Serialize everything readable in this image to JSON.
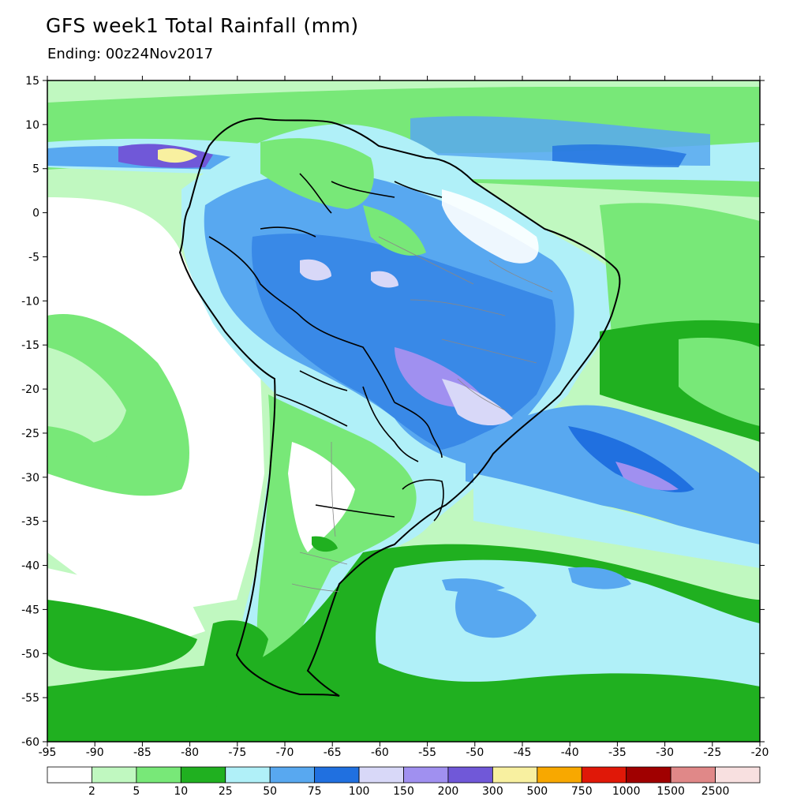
{
  "header": {
    "title": "GFS week1 Total Rainfall (mm)",
    "subtitle": "Ending: 00z24Nov2017"
  },
  "map": {
    "lon_range": [
      -95,
      -20
    ],
    "lat_range": [
      -60,
      15
    ],
    "lon_ticks": [
      "-95",
      "-90",
      "-85",
      "-80",
      "-75",
      "-70",
      "-65",
      "-60",
      "-55",
      "-50",
      "-45",
      "-40",
      "-35",
      "-30",
      "-25",
      "-20"
    ],
    "lat_ticks": [
      "15",
      "10",
      "5",
      "0",
      "-5",
      "-10",
      "-15",
      "-20",
      "-25",
      "-30",
      "-35",
      "-40",
      "-45",
      "-50",
      "-55",
      "-60"
    ]
  },
  "legend": {
    "colors": [
      "#ffffff",
      "#c0f8c0",
      "#78e878",
      "#20b020",
      "#b0f0f8",
      "#58a8f0",
      "#2070e0",
      "#d8d8f8",
      "#a090f0",
      "#7058d8",
      "#f8f0a0",
      "#f8a800",
      "#e01808",
      "#a00000",
      "#e08888",
      "#f8e0e0"
    ],
    "thresholds": [
      "2",
      "5",
      "10",
      "25",
      "50",
      "75",
      "100",
      "150",
      "200",
      "300",
      "500",
      "750",
      "1000",
      "1500",
      "2500"
    ]
  }
}
